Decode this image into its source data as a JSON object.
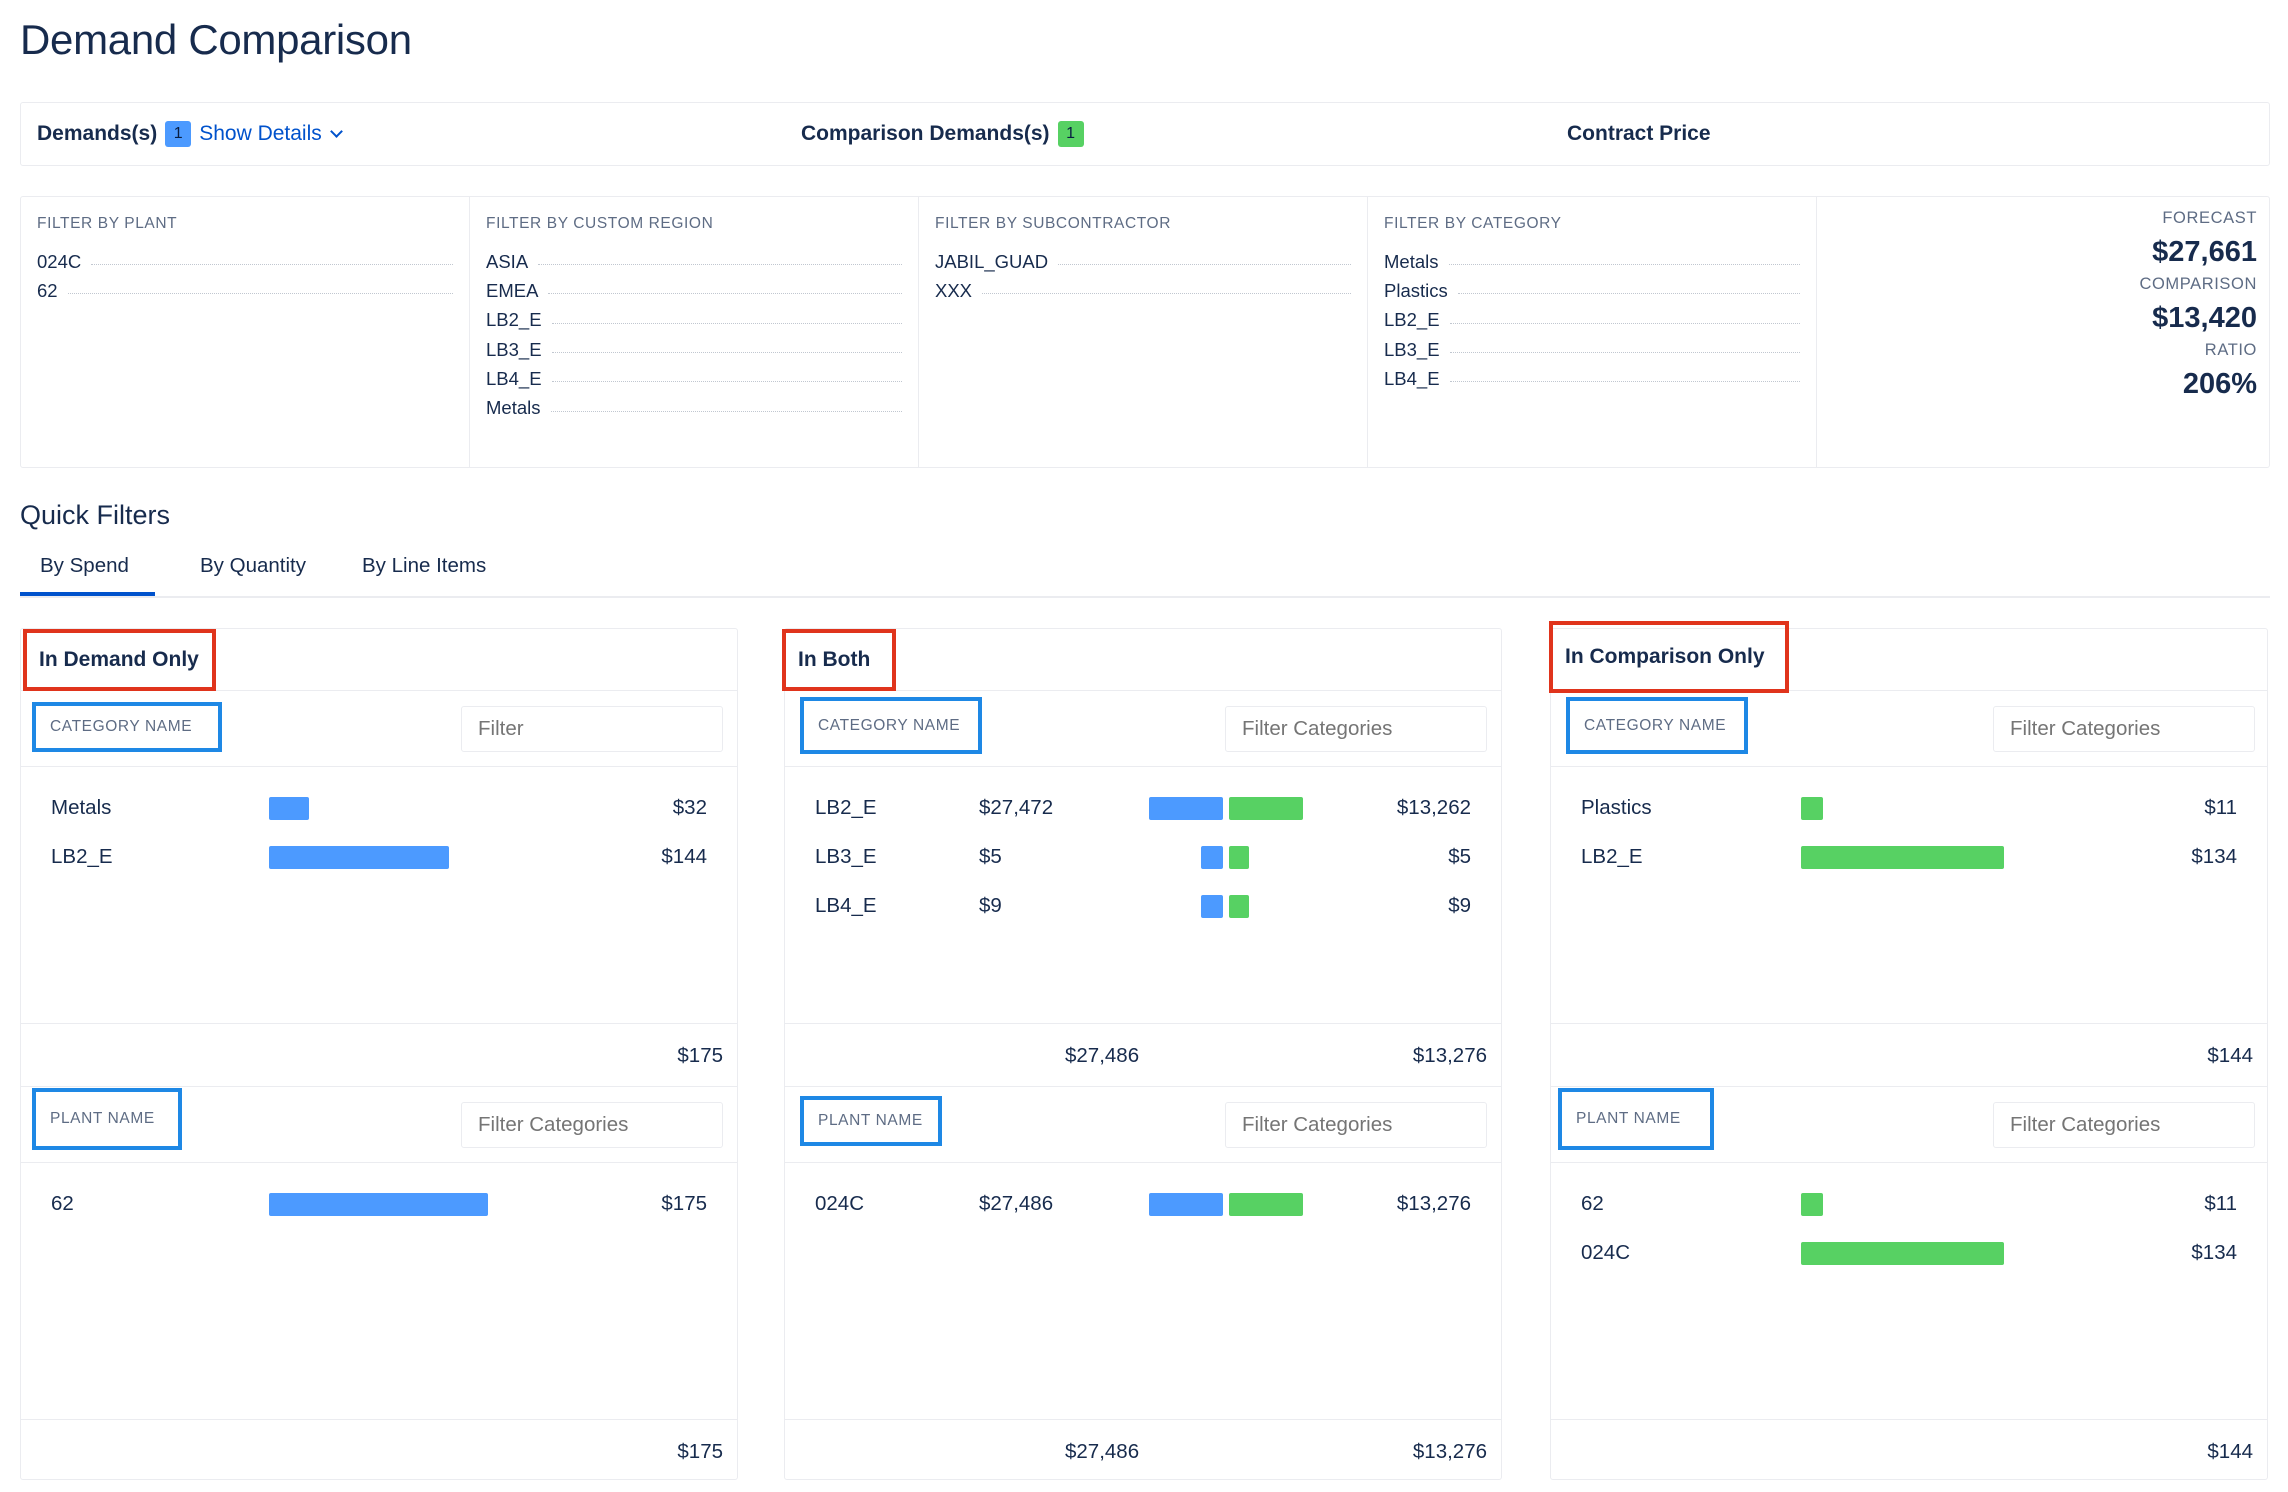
{
  "page_title": "Demand Comparison",
  "summary": {
    "demands_label": "Demands(s)",
    "demands_count": "1",
    "show_details": "Show Details",
    "comparison_label": "Comparison Demands(s)",
    "comparison_count": "1",
    "contract_price": "Contract Price"
  },
  "filters": {
    "plant": {
      "title": "FILTER BY PLANT",
      "items": [
        "024C",
        "62"
      ]
    },
    "region": {
      "title": "FILTER BY CUSTOM REGION",
      "items": [
        "ASIA",
        "EMEA",
        "LB2_E",
        "LB3_E",
        "LB4_E",
        "Metals"
      ]
    },
    "subcontractor": {
      "title": "FILTER BY SUBCONTRACTOR",
      "items": [
        "JABIL_GUAD",
        "XXX"
      ]
    },
    "category": {
      "title": "FILTER BY CATEGORY",
      "items": [
        "Metals",
        "Plastics",
        "LB2_E",
        "LB3_E",
        "LB4_E"
      ]
    }
  },
  "stats": {
    "forecast_label": "FORECAST",
    "forecast_value": "$27,661",
    "comparison_label": "COMPARISON",
    "comparison_value": "$13,420",
    "ratio_label": "RATIO",
    "ratio_value": "206%"
  },
  "quick_filters": {
    "title": "Quick Filters",
    "tabs": [
      "By Spend",
      "By Quantity",
      "By Line Items"
    ],
    "active_tab": "By Spend"
  },
  "colors": {
    "demand": "#4c9aff",
    "comparison": "#57d163",
    "highlight_red": "#e0341c",
    "highlight_blue": "#1e88e5"
  },
  "cards": {
    "demand_only": {
      "title": "In Demand Only",
      "category_label": "CATEGORY NAME",
      "category_filter_placeholder": "Filter",
      "category_rows": [
        {
          "name": "Metals",
          "value": "$32",
          "bar_fraction": 0.22
        },
        {
          "name": "LB2_E",
          "value": "$144",
          "bar_fraction": 1.0
        }
      ],
      "category_total": "$175",
      "plant_label": "PLANT NAME",
      "plant_filter_placeholder": "Filter Categories",
      "plant_rows": [
        {
          "name": "62",
          "value": "$175",
          "bar_fraction": 1.0
        }
      ],
      "plant_total": "$175"
    },
    "both": {
      "title": "In Both",
      "category_label": "CATEGORY NAME",
      "category_filter_placeholder": "Filter Categories",
      "category_rows": [
        {
          "name": "LB2_E",
          "demand": "$27,472",
          "comparison": "$13,262"
        },
        {
          "name": "LB3_E",
          "demand": "$5",
          "comparison": "$5"
        },
        {
          "name": "LB4_E",
          "demand": "$9",
          "comparison": "$9"
        }
      ],
      "category_total_demand": "$27,486",
      "category_total_comparison": "$13,276",
      "plant_label": "PLANT NAME",
      "plant_filter_placeholder": "Filter Categories",
      "plant_rows": [
        {
          "name": "024C",
          "demand": "$27,486",
          "comparison": "$13,276"
        }
      ],
      "plant_total_demand": "$27,486",
      "plant_total_comparison": "$13,276"
    },
    "comparison_only": {
      "title": "In Comparison Only",
      "category_label": "CATEGORY NAME",
      "category_filter_placeholder": "Filter Categories",
      "category_rows": [
        {
          "name": "Plastics",
          "value": "$11",
          "bar_fraction": 0.08
        },
        {
          "name": "LB2_E",
          "value": "$134",
          "bar_fraction": 1.0
        }
      ],
      "category_total": "$144",
      "plant_label": "PLANT NAME",
      "plant_filter_placeholder": "Filter Categories",
      "plant_rows": [
        {
          "name": "62",
          "value": "$11",
          "bar_fraction": 0.08
        },
        {
          "name": "024C",
          "value": "$134",
          "bar_fraction": 1.0
        }
      ],
      "plant_total": "$144"
    }
  }
}
